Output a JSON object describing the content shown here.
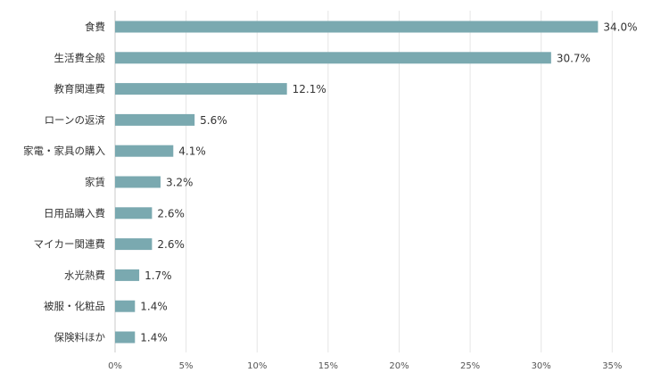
{
  "chart_data": {
    "type": "bar",
    "orientation": "horizontal",
    "categories": [
      "食費",
      "生活費全般",
      "教育関連費",
      "ローンの返済",
      "家電・家具の購入",
      "家賃",
      "日用品購入費",
      "マイカー関連費",
      "水光熱費",
      "被服・化粧品",
      "保険料ほか"
    ],
    "values": [
      34.0,
      30.7,
      12.1,
      5.6,
      4.1,
      3.2,
      2.6,
      2.6,
      1.7,
      1.4,
      1.4
    ],
    "value_labels": [
      "34.0%",
      "30.7%",
      "12.1%",
      "5.6%",
      "4.1%",
      "3.2%",
      "2.6%",
      "2.6%",
      "1.7%",
      "1.4%",
      "1.4%"
    ],
    "xticks": [
      0,
      5,
      10,
      15,
      20,
      25,
      30,
      35
    ],
    "xtick_labels": [
      "0%",
      "5%",
      "10%",
      "15%",
      "20%",
      "25%",
      "30%",
      "35%"
    ],
    "xlim": [
      0,
      39
    ],
    "title": "",
    "xlabel": "",
    "ylabel": "",
    "grid": true,
    "legend": "none",
    "bar_color": "#7aa9b0"
  }
}
